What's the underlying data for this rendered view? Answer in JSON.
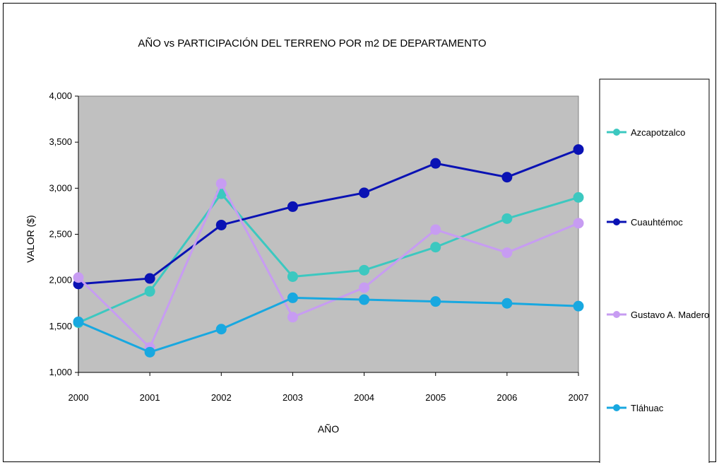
{
  "chart_data": {
    "type": "line",
    "title": "AÑO vs PARTICIPACIÓN DEL TERRENO POR m2 DE DEPARTAMENTO",
    "xlabel": "AÑO",
    "ylabel": "VALOR ($)",
    "categories": [
      "2000",
      "2001",
      "2002",
      "2003",
      "2004",
      "2005",
      "2006",
      "2007"
    ],
    "ylim": [
      1000,
      4000
    ],
    "yticks": [
      1000,
      1500,
      2000,
      2500,
      3000,
      3500,
      4000
    ],
    "ytick_labels": [
      "1,000",
      "1,500",
      "2,000",
      "2,500",
      "3,000",
      "3,500",
      "4,000"
    ],
    "plot_background": "#c0c0c0",
    "legend_position": "right",
    "series": [
      {
        "name": "Azcapotzalco",
        "color": "#3cc8c0",
        "values": [
          1540,
          1880,
          2940,
          2040,
          2110,
          2360,
          2670,
          2900
        ]
      },
      {
        "name": "Cuauhtémoc",
        "color": "#0a12b4",
        "values": [
          1960,
          2020,
          2600,
          2800,
          2950,
          3270,
          3120,
          3420
        ]
      },
      {
        "name": "Gustavo A. Madero",
        "color": "#c79cf2",
        "values": [
          2030,
          1270,
          3050,
          1600,
          1920,
          2550,
          2300,
          2620
        ]
      },
      {
        "name": "Tláhuac",
        "color": "#18a8e0",
        "values": [
          1550,
          1220,
          1470,
          1810,
          1790,
          1770,
          1750,
          1720
        ]
      }
    ]
  }
}
